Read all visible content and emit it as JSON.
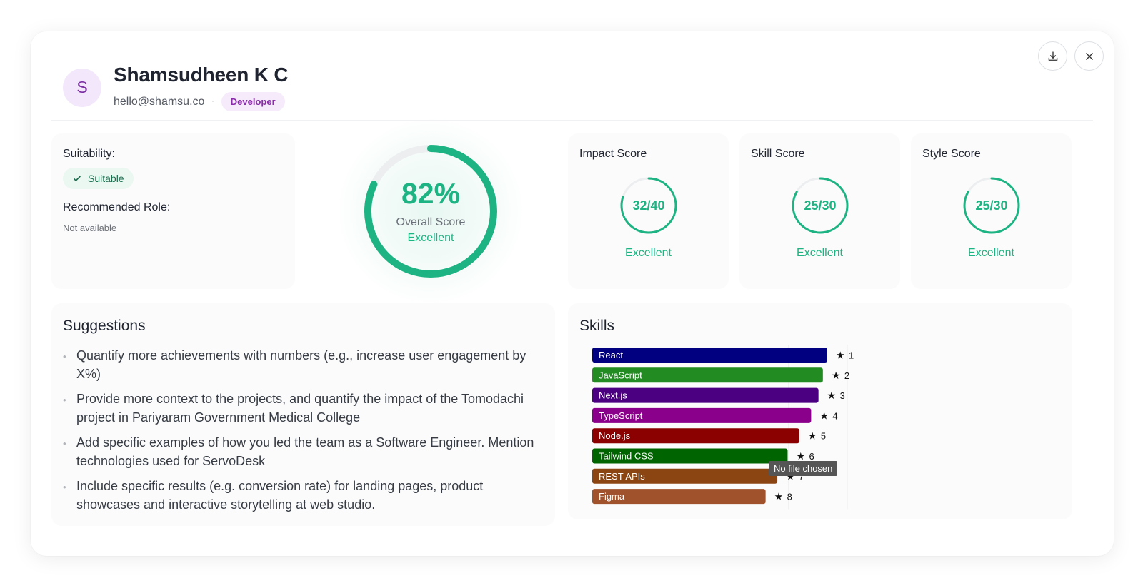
{
  "profile": {
    "avatar_initial": "S",
    "name": "Shamsudheen K C",
    "email": "hello@shamsu.co",
    "separator": "·",
    "role_badge": "Developer"
  },
  "actions": {
    "download_icon": "download-icon",
    "close_icon": "close-icon"
  },
  "suitability": {
    "label": "Suitability:",
    "status": "Suitable",
    "recommended_role_label": "Recommended Role:",
    "recommended_role_value": "Not available"
  },
  "overall": {
    "percent_text": "82%",
    "percent": 82,
    "label": "Overall Score",
    "rating": "Excellent"
  },
  "scores": [
    {
      "title": "Impact Score",
      "text": "32/40",
      "value": 32,
      "max": 40,
      "rating": "Excellent"
    },
    {
      "title": "Skill Score",
      "text": "25/30",
      "value": 25,
      "max": 30,
      "rating": "Excellent"
    },
    {
      "title": "Style Score",
      "text": "25/30",
      "value": 25,
      "max": 30,
      "rating": "Excellent"
    }
  ],
  "suggestions": {
    "title": "Suggestions",
    "items": [
      "Quantify more achievements with numbers (e.g., increase user engagement by X%)",
      "Provide more context to the projects, and quantify the impact of the Tomodachi project in Pariyaram Government Medical College",
      "Add specific examples of how you led the team as a Software Engineer. Mention technologies used for ServoDesk",
      "Include specific results (e.g. conversion rate) for landing pages, product showcases and interactive storytelling at web studio."
    ]
  },
  "skills": {
    "title": "Skills",
    "tooltip": "No file chosen",
    "star_glyph": "★"
  },
  "chart_data": {
    "type": "bar",
    "orientation": "horizontal",
    "categories": [
      "React",
      "JavaScript",
      "Next.js",
      "TypeScript",
      "Node.js",
      "Tailwind CSS",
      "REST APIs",
      "Figma"
    ],
    "values": [
      8,
      7.85,
      7.7,
      7.45,
      7.05,
      6.65,
      6.3,
      5.9
    ],
    "rank_labels": [
      "1",
      "2",
      "3",
      "4",
      "5",
      "6",
      "7",
      "8"
    ],
    "colors": [
      "#000080",
      "#228b22",
      "#4b0082",
      "#8b008b",
      "#8b0000",
      "#006400",
      "#8b4513",
      "#a0522d"
    ],
    "xlim": [
      0,
      8
    ]
  }
}
